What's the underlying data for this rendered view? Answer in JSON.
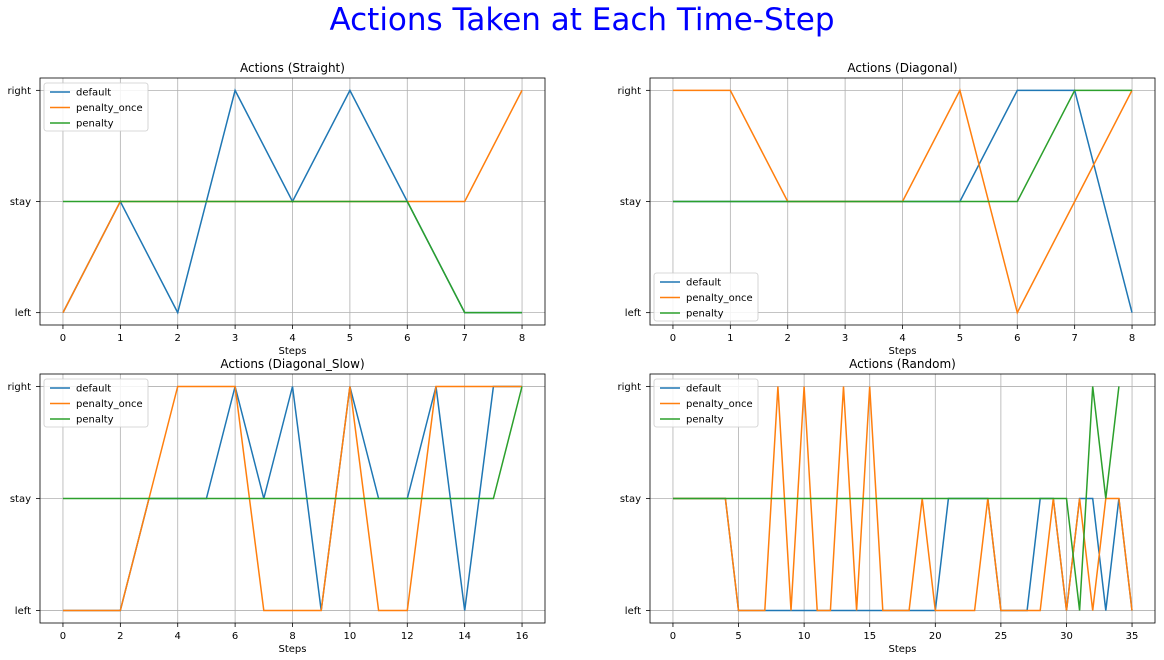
{
  "figure": {
    "title": "Actions Taken at Each Time-Step",
    "title_color": "#0000ff"
  },
  "colors": {
    "default": "#1f77b4",
    "penalty_once": "#ff7f0e",
    "penalty": "#2ca02c",
    "grid": "#b0b0b0"
  },
  "chart_data": [
    {
      "type": "line",
      "title": "Actions (Straight)",
      "xlabel": "Steps",
      "ylabel": "",
      "xlim": [
        -0.4,
        8.4
      ],
      "xticks": [
        0,
        1,
        2,
        3,
        4,
        5,
        6,
        7,
        8
      ],
      "yticks": [
        "left",
        "stay",
        "right"
      ],
      "legend": "top-left",
      "grid": true,
      "series": [
        {
          "name": "default",
          "x": [
            0,
            1,
            2,
            3,
            4,
            5,
            6,
            7,
            8
          ],
          "y": [
            0,
            1,
            0,
            2,
            1,
            2,
            1,
            0,
            0
          ]
        },
        {
          "name": "penalty_once",
          "x": [
            0,
            1,
            2,
            3,
            4,
            5,
            6,
            7,
            8
          ],
          "y": [
            0,
            1,
            1,
            1,
            1,
            1,
            1,
            1,
            2
          ]
        },
        {
          "name": "penalty",
          "x": [
            0,
            1,
            2,
            3,
            4,
            5,
            6,
            7,
            8
          ],
          "y": [
            1,
            1,
            1,
            1,
            1,
            1,
            1,
            0,
            0
          ]
        }
      ]
    },
    {
      "type": "line",
      "title": "Actions (Diagonal)",
      "xlabel": "Steps",
      "ylabel": "",
      "xlim": [
        -0.4,
        8.4
      ],
      "xticks": [
        0,
        1,
        2,
        3,
        4,
        5,
        6,
        7,
        8
      ],
      "yticks": [
        "left",
        "stay",
        "right"
      ],
      "legend": "bottom-left",
      "grid": true,
      "series": [
        {
          "name": "default",
          "x": [
            0,
            1,
            2,
            3,
            4,
            5,
            6,
            7,
            8
          ],
          "y": [
            1,
            1,
            1,
            1,
            1,
            1,
            2,
            2,
            0
          ]
        },
        {
          "name": "penalty_once",
          "x": [
            0,
            1,
            2,
            3,
            4,
            5,
            6,
            7,
            8
          ],
          "y": [
            2,
            2,
            1,
            1,
            1,
            2,
            0,
            1,
            2
          ]
        },
        {
          "name": "penalty",
          "x": [
            0,
            1,
            2,
            3,
            4,
            5,
            6,
            7,
            8
          ],
          "y": [
            1,
            1,
            1,
            1,
            1,
            1,
            1,
            2,
            2
          ]
        }
      ]
    },
    {
      "type": "line",
      "title": "Actions (Diagonal_Slow)",
      "xlabel": "Steps",
      "ylabel": "",
      "xlim": [
        -0.8,
        16.8
      ],
      "xticks": [
        0,
        2,
        4,
        6,
        8,
        10,
        12,
        14,
        16
      ],
      "yticks": [
        "left",
        "stay",
        "right"
      ],
      "legend": "top-left",
      "grid": true,
      "series": [
        {
          "name": "default",
          "x": [
            0,
            1,
            2,
            3,
            4,
            5,
            6,
            7,
            8,
            9,
            10,
            11,
            12,
            13,
            14,
            15,
            16
          ],
          "y": [
            0,
            0,
            0,
            1,
            1,
            1,
            2,
            1,
            2,
            0,
            2,
            1,
            1,
            2,
            0,
            2,
            2
          ]
        },
        {
          "name": "penalty_once",
          "x": [
            0,
            1,
            2,
            3,
            4,
            5,
            6,
            7,
            8,
            9,
            10,
            11,
            12,
            13,
            14,
            15,
            16
          ],
          "y": [
            0,
            0,
            0,
            1,
            2,
            2,
            2,
            0,
            0,
            0,
            2,
            0,
            0,
            2,
            2,
            2,
            2
          ]
        },
        {
          "name": "penalty",
          "x": [
            0,
            1,
            2,
            3,
            4,
            5,
            6,
            7,
            8,
            9,
            10,
            11,
            12,
            13,
            14,
            15,
            16
          ],
          "y": [
            1,
            1,
            1,
            1,
            1,
            1,
            1,
            1,
            1,
            1,
            1,
            1,
            1,
            1,
            1,
            1,
            2
          ]
        }
      ]
    },
    {
      "type": "line",
      "title": "Actions (Random)",
      "xlabel": "Steps",
      "ylabel": "",
      "xlim": [
        -1.75,
        36.75
      ],
      "xticks": [
        0,
        5,
        10,
        15,
        20,
        25,
        30,
        35
      ],
      "yticks": [
        "left",
        "stay",
        "right"
      ],
      "legend": "top-left",
      "grid": true,
      "series": [
        {
          "name": "default",
          "x": [
            0,
            1,
            2,
            3,
            4,
            5,
            6,
            7,
            8,
            9,
            10,
            11,
            12,
            13,
            14,
            15,
            16,
            17,
            18,
            19,
            20,
            21,
            22,
            23,
            24,
            25,
            26,
            27,
            28,
            29,
            30,
            31,
            32,
            33,
            34,
            35
          ],
          "y": [
            1,
            1,
            1,
            1,
            1,
            0,
            0,
            0,
            0,
            0,
            0,
            0,
            0,
            0,
            0,
            0,
            0,
            0,
            0,
            0,
            0,
            1,
            1,
            1,
            1,
            0,
            0,
            0,
            1,
            1,
            0,
            1,
            1,
            0,
            1,
            0
          ]
        },
        {
          "name": "penalty_once",
          "x": [
            0,
            1,
            2,
            3,
            4,
            5,
            6,
            7,
            8,
            9,
            10,
            11,
            12,
            13,
            14,
            15,
            16,
            17,
            18,
            19,
            20,
            21,
            22,
            23,
            24,
            25,
            26,
            27,
            28,
            29,
            30,
            31,
            32,
            33,
            34,
            35
          ],
          "y": [
            1,
            1,
            1,
            1,
            1,
            0,
            0,
            0,
            2,
            0,
            2,
            0,
            0,
            2,
            0,
            2,
            0,
            0,
            0,
            1,
            0,
            0,
            0,
            0,
            1,
            0,
            0,
            0,
            0,
            1,
            0,
            1,
            0,
            1,
            1,
            0
          ]
        },
        {
          "name": "penalty",
          "x": [
            0,
            1,
            2,
            3,
            4,
            5,
            6,
            7,
            8,
            9,
            10,
            11,
            12,
            13,
            14,
            15,
            16,
            17,
            18,
            19,
            20,
            21,
            22,
            23,
            24,
            25,
            26,
            27,
            28,
            29,
            30,
            31,
            32,
            33,
            34
          ],
          "y": [
            1,
            1,
            1,
            1,
            1,
            1,
            1,
            1,
            1,
            1,
            1,
            1,
            1,
            1,
            1,
            1,
            1,
            1,
            1,
            1,
            1,
            1,
            1,
            1,
            1,
            1,
            1,
            1,
            1,
            1,
            1,
            0,
            2,
            1,
            2
          ]
        }
      ]
    }
  ]
}
